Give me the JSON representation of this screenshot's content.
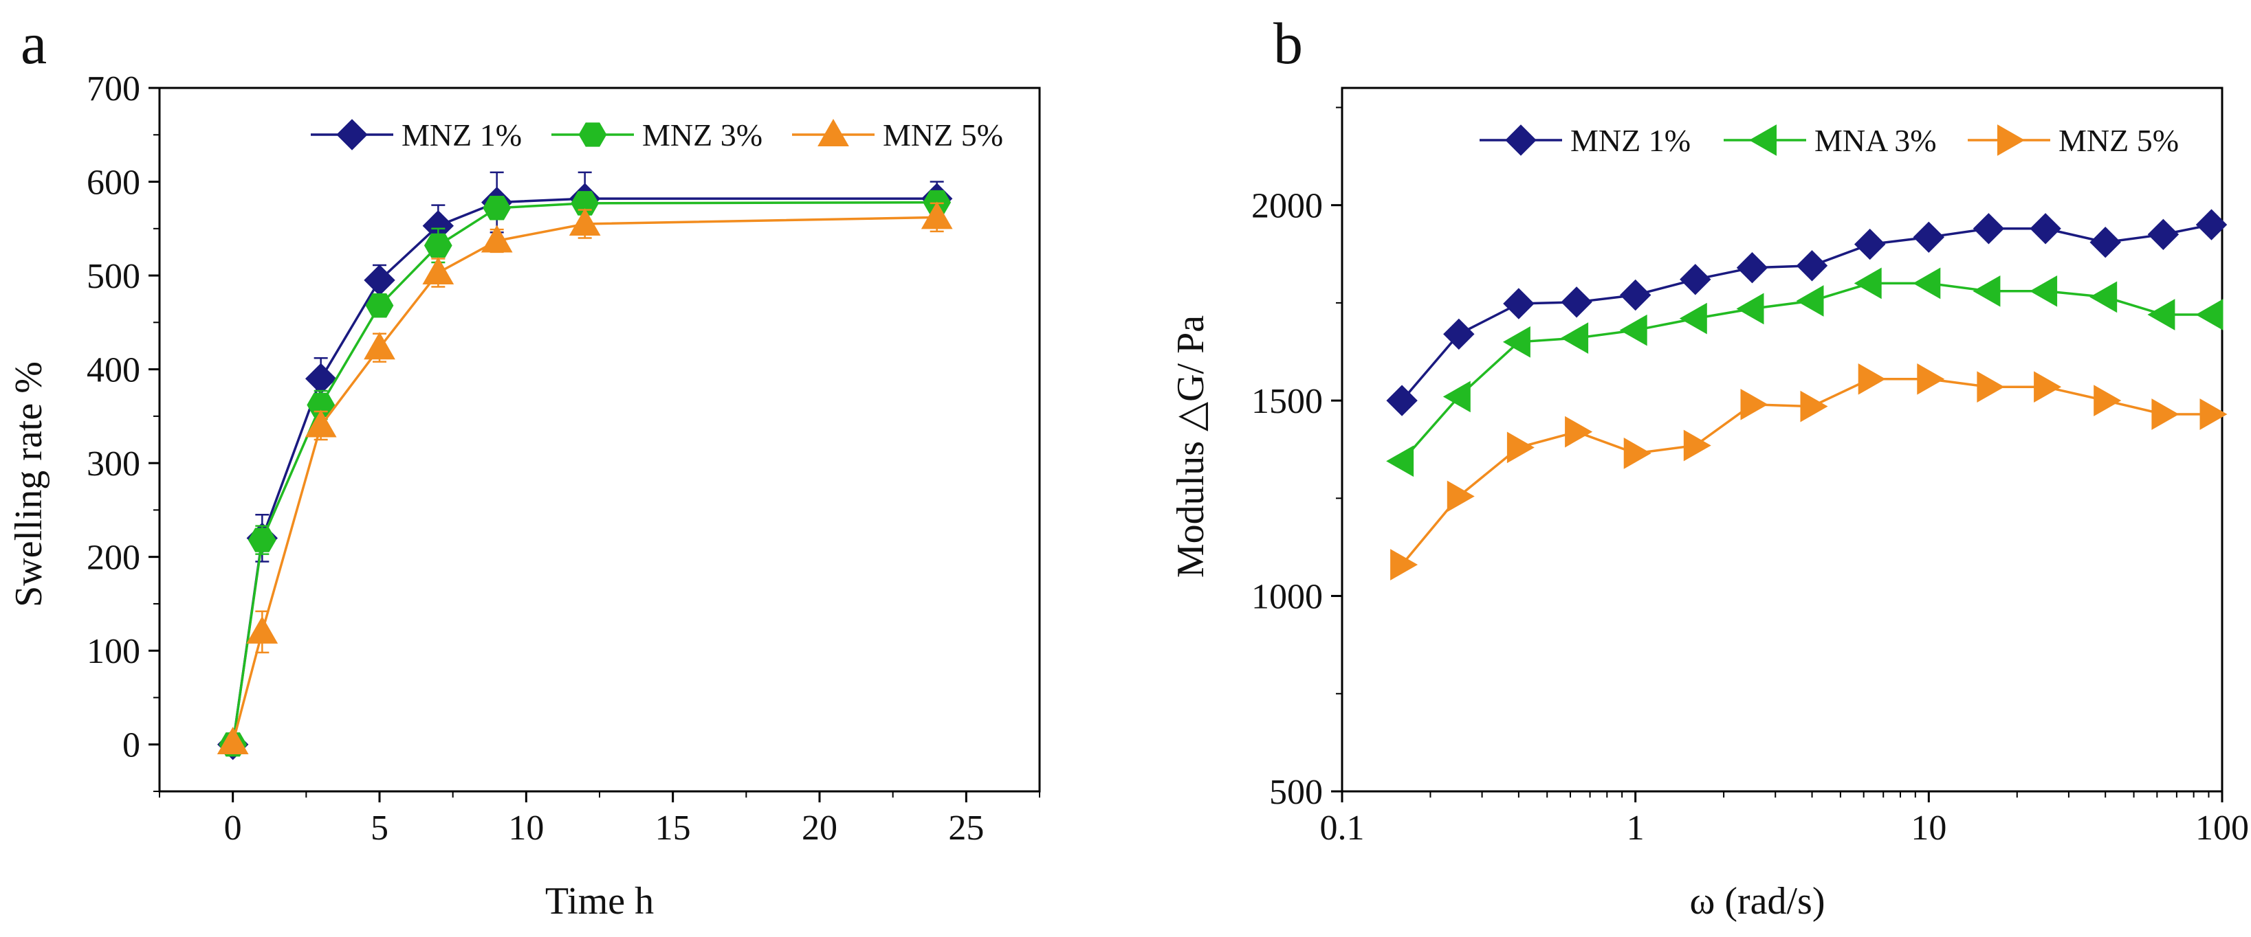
{
  "figure": {
    "panels": [
      "a",
      "b"
    ]
  },
  "chart_data": [
    {
      "id": "a",
      "type": "line",
      "title": "",
      "panel_label": "a",
      "xlabel": "Time h",
      "ylabel": "Swelling rate %",
      "xlim": [
        -2.5,
        27.5
      ],
      "ylim": [
        -50,
        700
      ],
      "xticks": [
        0,
        5,
        10,
        15,
        20,
        25
      ],
      "yticks": [
        0,
        100,
        200,
        300,
        400,
        500,
        600,
        700
      ],
      "grid": false,
      "legend_position": "top-right",
      "series": [
        {
          "name": "MNZ 1%",
          "color": "#1a1a80",
          "marker": "diamond",
          "x": [
            0,
            1,
            3,
            5,
            7,
            9,
            12,
            24
          ],
          "y": [
            0,
            220,
            390,
            495,
            553,
            578,
            582,
            582
          ],
          "err": [
            0,
            25,
            22,
            16,
            22,
            32,
            28,
            18
          ]
        },
        {
          "name": "MNZ 3%",
          "color": "#22bb22",
          "marker": "hexagon",
          "x": [
            0,
            1,
            3,
            5,
            7,
            9,
            12,
            24
          ],
          "y": [
            0,
            218,
            362,
            468,
            532,
            572,
            577,
            578
          ],
          "err": [
            0,
            15,
            15,
            12,
            18,
            12,
            12,
            10
          ]
        },
        {
          "name": "MNZ 5%",
          "color": "#f28c1e",
          "marker": "triangle-up",
          "x": [
            0,
            1,
            3,
            5,
            7,
            9,
            12,
            24
          ],
          "y": [
            2,
            120,
            340,
            423,
            503,
            537,
            555,
            562
          ],
          "err": [
            0,
            22,
            15,
            15,
            15,
            12,
            15,
            15
          ]
        }
      ]
    },
    {
      "id": "b",
      "type": "line",
      "title": "",
      "panel_label": "b",
      "xlabel": "ω (rad/s)",
      "ylabel": "Modulus △G/ Pa",
      "xscale": "log",
      "xlim": [
        0.1,
        100
      ],
      "ylim": [
        500,
        2300
      ],
      "xticks": [
        0.1,
        1,
        10,
        100
      ],
      "xtick_labels": [
        "0.1",
        "1",
        "10",
        "100"
      ],
      "yticks": [
        500,
        1000,
        1500,
        2000
      ],
      "grid": false,
      "legend_position": "top-right",
      "series": [
        {
          "name": "MNZ 1%",
          "color": "#1a1a80",
          "marker": "diamond",
          "x": [
            0.16,
            0.25,
            0.4,
            0.63,
            1.0,
            1.6,
            2.5,
            4.0,
            6.3,
            10,
            16,
            25,
            40,
            63,
            92
          ],
          "y": [
            1500,
            1670,
            1748,
            1752,
            1770,
            1810,
            1840,
            1845,
            1900,
            1918,
            1940,
            1940,
            1905,
            1925,
            1950
          ]
        },
        {
          "name": "MNA 3%",
          "color": "#22bb22",
          "marker": "triangle-left",
          "x": [
            0.16,
            0.25,
            0.4,
            0.63,
            1.0,
            1.6,
            2.5,
            4.0,
            6.3,
            10,
            16,
            25,
            40,
            63,
            92
          ],
          "y": [
            1345,
            1510,
            1650,
            1660,
            1680,
            1710,
            1735,
            1755,
            1800,
            1800,
            1780,
            1780,
            1765,
            1720,
            1720
          ]
        },
        {
          "name": "MNZ 5%",
          "color": "#f28c1e",
          "marker": "triangle-right",
          "x": [
            0.16,
            0.25,
            0.4,
            0.63,
            1.0,
            1.6,
            2.5,
            4.0,
            6.3,
            10,
            16,
            25,
            40,
            63,
            92
          ],
          "y": [
            1080,
            1255,
            1380,
            1420,
            1365,
            1385,
            1490,
            1485,
            1555,
            1555,
            1535,
            1535,
            1500,
            1465,
            1465
          ]
        }
      ]
    }
  ]
}
